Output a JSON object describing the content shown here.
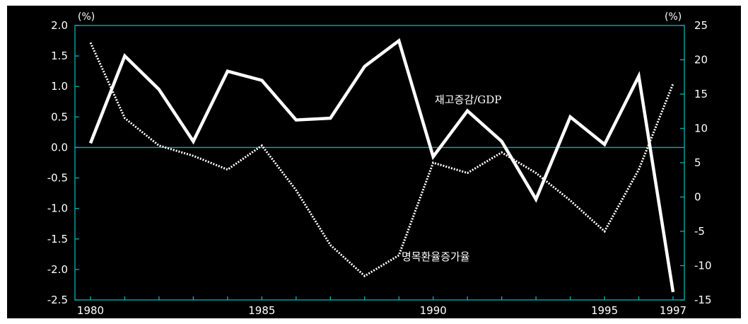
{
  "chart_data": {
    "type": "line",
    "x": [
      1980,
      1981,
      1982,
      1983,
      1984,
      1985,
      1986,
      1987,
      1988,
      1989,
      1990,
      1991,
      1992,
      1993,
      1994,
      1995,
      1996,
      1997
    ],
    "x_ticks": [
      "1980",
      "1985",
      "1990",
      "1995",
      "1997"
    ],
    "x_tick_values": [
      1980,
      1985,
      1990,
      1995,
      1997
    ],
    "y_left": {
      "unit": "(%)",
      "range": [
        -2.5,
        2.0
      ],
      "ticks": [
        "2.0",
        "1.5",
        "1.0",
        "0.5",
        "0.0",
        "-0.5",
        "-1.0",
        "-1.5",
        "-2.0",
        "-2.5"
      ],
      "tick_values": [
        2.0,
        1.5,
        1.0,
        0.5,
        0.0,
        -0.5,
        -1.0,
        -1.5,
        -2.0,
        -2.5
      ]
    },
    "y_right": {
      "unit": "(%)",
      "range": [
        -15,
        25
      ],
      "ticks": [
        "25",
        "20",
        "15",
        "10",
        "5",
        "0",
        "-5",
        "-10",
        "-15"
      ],
      "tick_values": [
        25,
        20,
        15,
        10,
        5,
        0,
        -5,
        -10,
        -15
      ]
    },
    "zero_line": 0.0,
    "series": [
      {
        "name": "재고증감/GDP",
        "axis": "left",
        "style": "solid",
        "values": [
          0.07,
          1.5,
          0.95,
          0.1,
          1.25,
          1.1,
          0.45,
          0.48,
          1.33,
          1.75,
          -0.15,
          0.6,
          0.1,
          -0.85,
          0.5,
          0.05,
          1.17,
          -2.37
        ]
      },
      {
        "name": "명목환율증가율",
        "axis": "right",
        "style": "dotted",
        "values": [
          22.5,
          11.5,
          7.5,
          6,
          4,
          7.5,
          1,
          -7,
          -11.5,
          -8.5,
          5,
          3.5,
          6.5,
          3.5,
          -0.5,
          -5,
          4,
          16.5
        ]
      }
    ],
    "colors": {
      "background": "#000000",
      "axis": "#00b4b4",
      "line": "#ffffff"
    }
  }
}
